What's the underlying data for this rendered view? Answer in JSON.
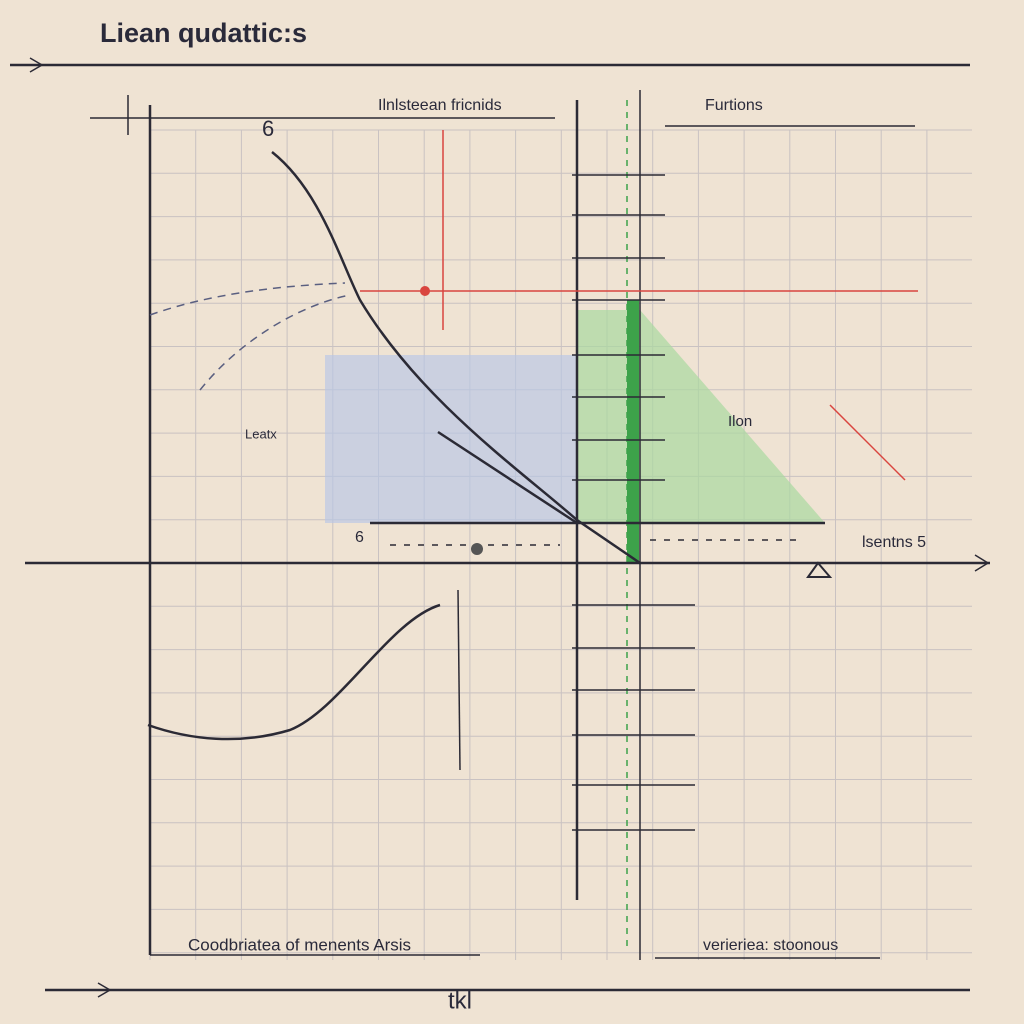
{
  "header": {
    "title": "Liean qudattic:s"
  },
  "labels": {
    "top_center": "Ilnlsteean fricnids",
    "top_right": "Furtions",
    "left_middle": "Leatx",
    "right_axis": "lsentns 5",
    "bottom_left": "Coodbriatea of menents Arsis",
    "bottom_right": "verieriea: stoonous",
    "bottom_axis": "tkl",
    "mark_top": "6",
    "mark_left": "6",
    "mark_green": "Ilon"
  }
}
